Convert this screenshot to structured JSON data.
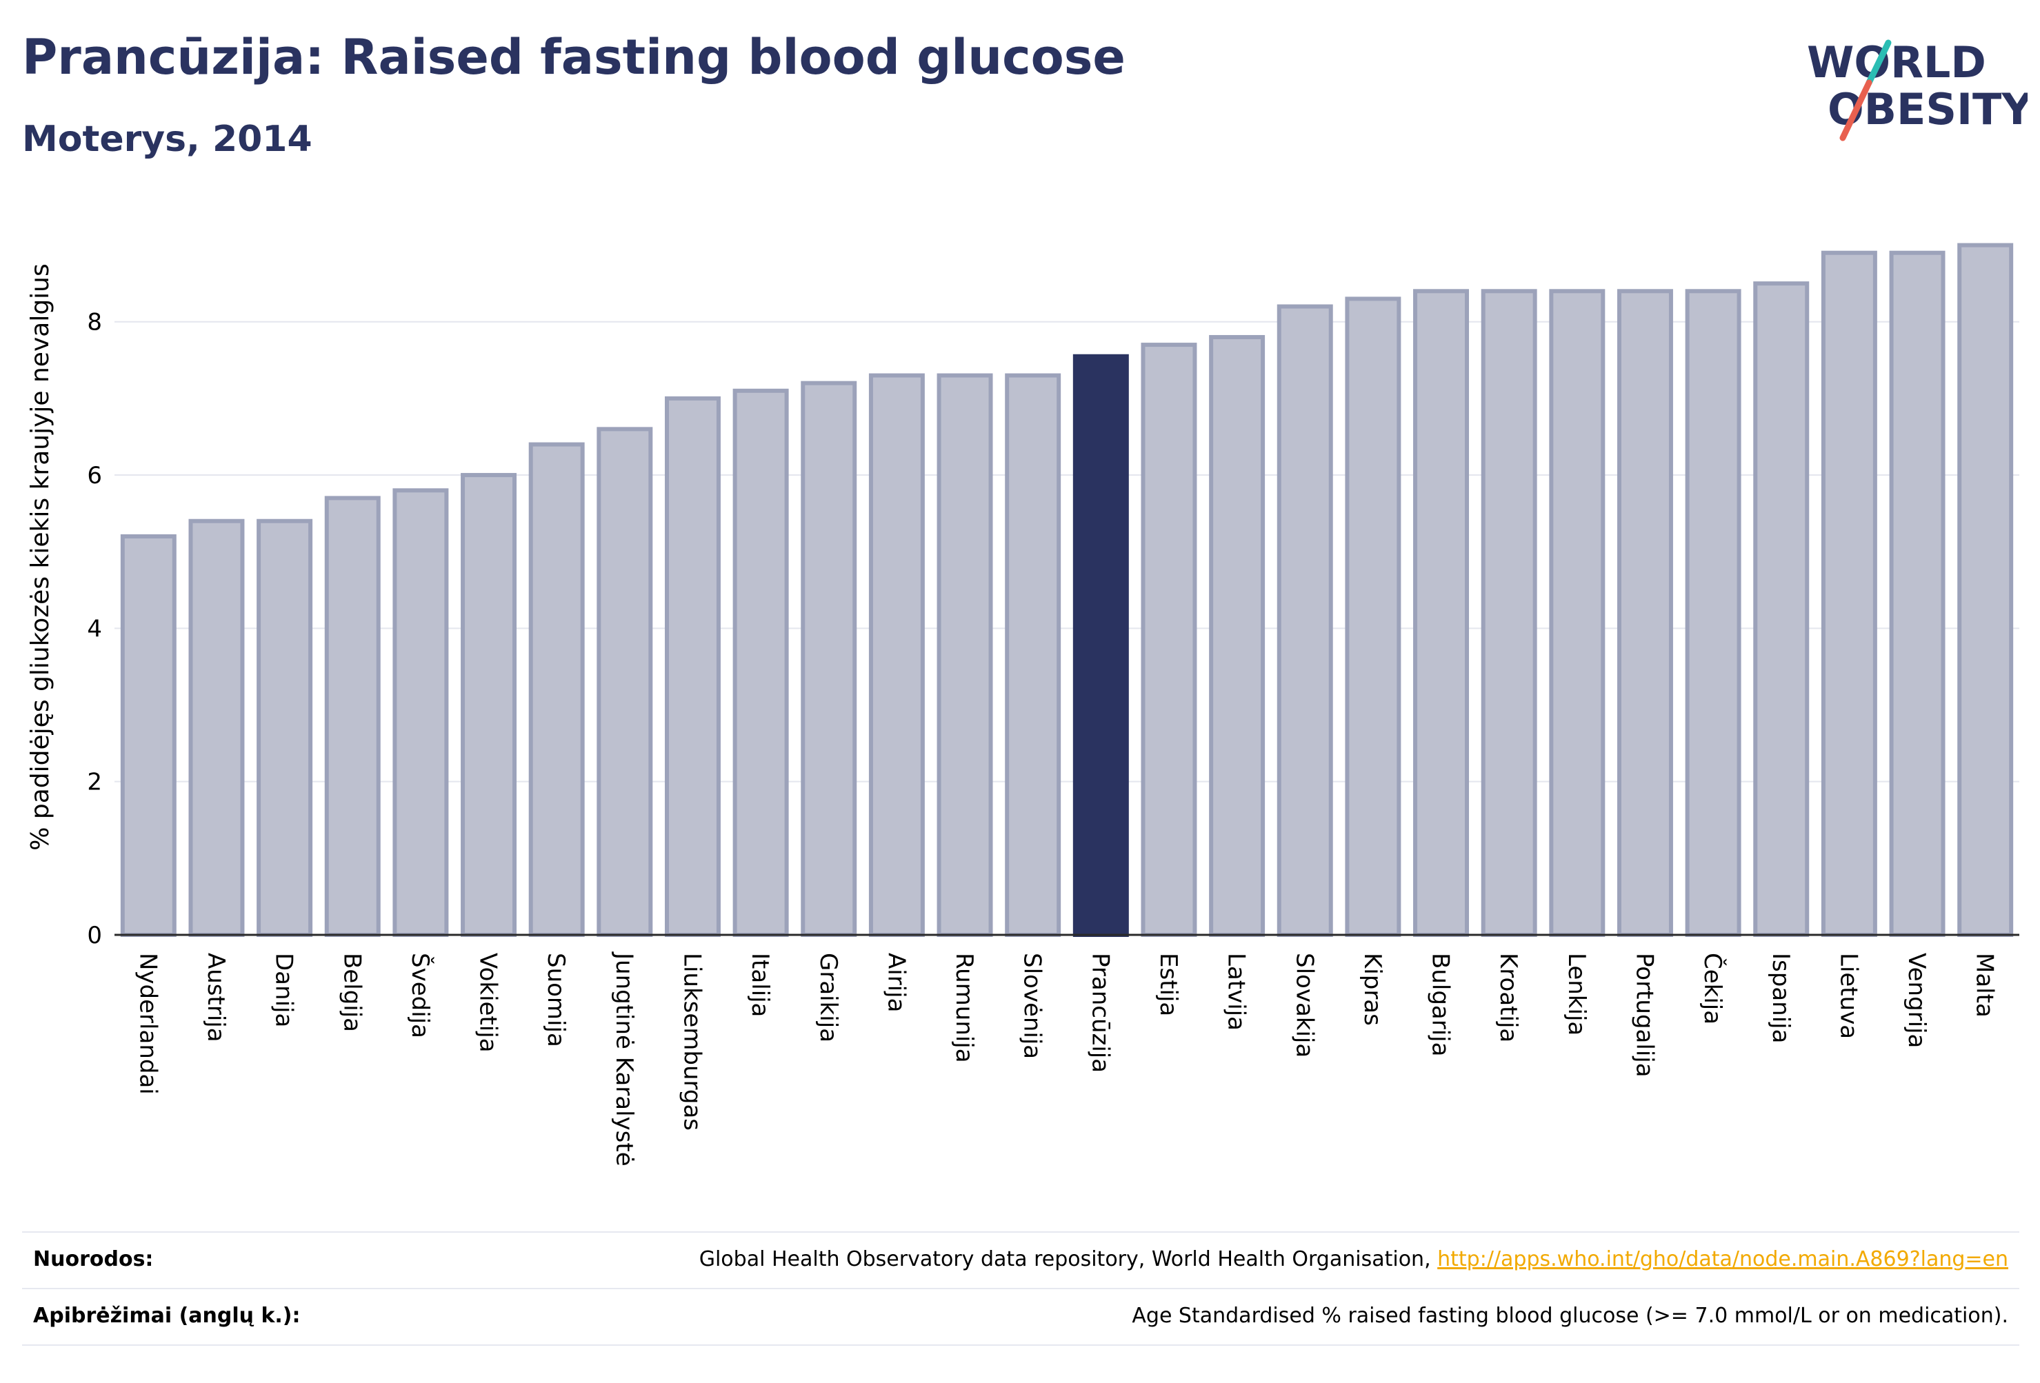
{
  "header": {
    "title": "Prancūzija: Raised fasting blood glucose",
    "subtitle": "Moterys, 2014"
  },
  "logo": {
    "line1": "WORLD",
    "line2": "OBESITY",
    "text_color": "#2a3360",
    "slash_color_top": "#2bbdb3",
    "slash_color_bottom": "#e8604f"
  },
  "colors": {
    "bar_fill": "#bdc0cf",
    "bar_stroke": "#9ca2ba",
    "highlight_fill": "#2a3360",
    "grid": "#e4e6ee",
    "axis": "#2a2a2a"
  },
  "chart_data": {
    "type": "bar",
    "ylabel": "% padidėjęs gliukozės kiekis kraujyje nevalgius",
    "xlabel": "",
    "ylim": [
      0,
      9.5
    ],
    "yticks": [
      0,
      2,
      4,
      6,
      8
    ],
    "grid": true,
    "highlight": "Prancūzija",
    "categories": [
      "Nyderlandai",
      "Austrija",
      "Danija",
      "Belgija",
      "Švedija",
      "Vokietija",
      "Suomija",
      "Jungtinė Karalystė",
      "Liuksemburgas",
      "Italija",
      "Graikija",
      "Airija",
      "Rumunija",
      "Slovėnija",
      "Prancūzija",
      "Estija",
      "Latvija",
      "Slovakija",
      "Kipras",
      "Bulgarija",
      "Kroatija",
      "Lenkija",
      "Portugalija",
      "Čekija",
      "Ispanija",
      "Lietuva",
      "Vengrija",
      "Malta"
    ],
    "values": [
      5.2,
      5.4,
      5.4,
      5.7,
      5.8,
      6.0,
      6.4,
      6.6,
      7.0,
      7.1,
      7.2,
      7.3,
      7.3,
      7.3,
      7.55,
      7.7,
      7.8,
      8.2,
      8.3,
      8.4,
      8.4,
      8.4,
      8.4,
      8.4,
      8.5,
      8.9,
      8.9,
      9.0
    ]
  },
  "footer": {
    "sources_label": "Nuorodos:",
    "sources_text": "Global Health Observatory data repository, World Health Organisation, ",
    "sources_link": "http://apps.who.int/gho/data/node.main.A869?lang=en",
    "definitions_label": "Apibrėžimai (anglų k.):",
    "definitions_text": "Age Standardised % raised fasting blood glucose (>= 7.0 mmol/L or on medication)."
  }
}
